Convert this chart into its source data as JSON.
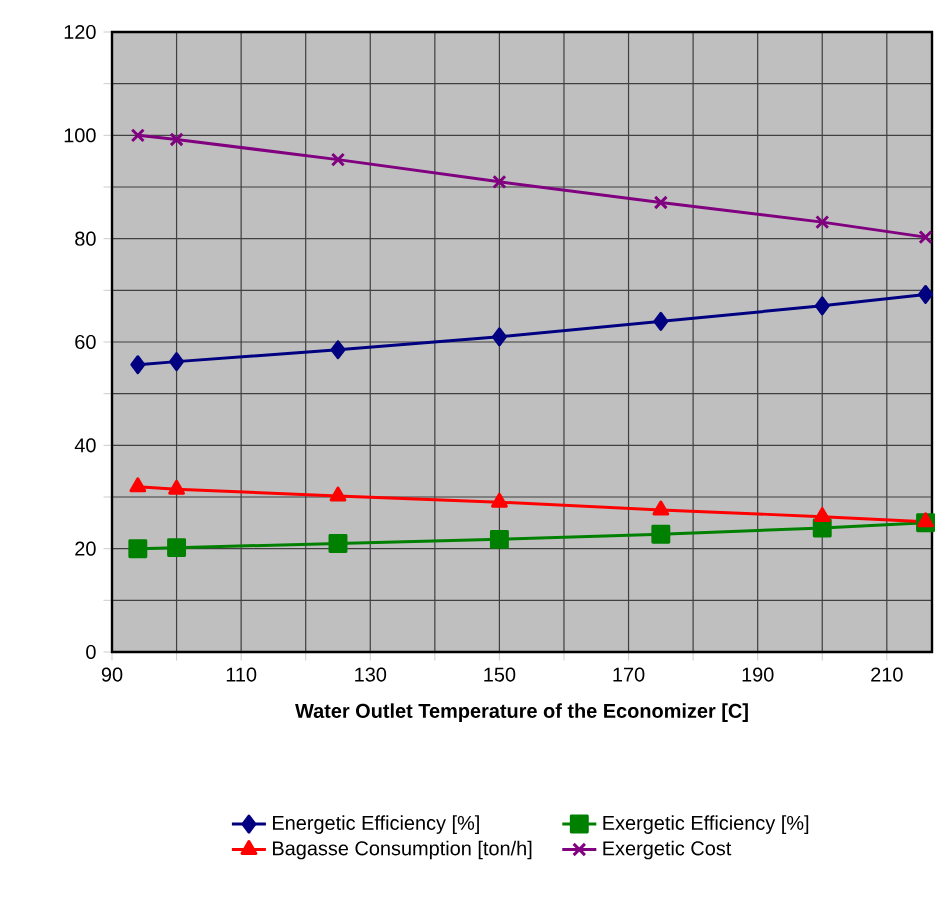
{
  "chart_data": {
    "type": "line",
    "xlabel": "Water Outlet Temperature of the Economizer [C]",
    "x": [
      94,
      100,
      125,
      150,
      175,
      200,
      216
    ],
    "series": [
      {
        "name": "Energetic Efficiency [%]",
        "color": "#000080",
        "marker": "diamond",
        "values": [
          55.6,
          56.2,
          58.5,
          61,
          64,
          67,
          69.2
        ]
      },
      {
        "name": "Exergetic Efficiency [%]",
        "color": "#008000",
        "marker": "square",
        "values": [
          20,
          20.2,
          21,
          21.8,
          22.8,
          24,
          25
        ]
      },
      {
        "name": "Bagasse Consumption [ton/h]",
        "color": "#ff0000",
        "marker": "triangle",
        "values": [
          32,
          31.5,
          30.2,
          29,
          27.5,
          26.2,
          25.2
        ]
      },
      {
        "name": "Exergetic Cost",
        "color": "#800080",
        "marker": "cross",
        "values": [
          100,
          99.2,
          95.3,
          91,
          87,
          83.2,
          80.3
        ]
      }
    ],
    "xlim": [
      90,
      217
    ],
    "ylim": [
      0,
      120
    ],
    "xticks": [
      90,
      {
        "value": 100,
        "label": null
      },
      110,
      {
        "value": 120,
        "label": null
      },
      130,
      {
        "value": 140,
        "label": null
      },
      150,
      {
        "value": 160,
        "label": null
      },
      170,
      {
        "value": 180,
        "label": null
      },
      190,
      {
        "value": 200,
        "label": null
      },
      210
    ],
    "yticks": [
      0,
      {
        "value": 10,
        "label": null
      },
      20,
      {
        "value": 30,
        "label": null
      },
      40,
      {
        "value": 50,
        "label": null
      },
      60,
      {
        "value": 70,
        "label": null
      },
      80,
      {
        "value": 90,
        "label": null
      },
      100,
      {
        "value": 110,
        "label": null
      },
      120
    ],
    "grid": true,
    "legend": "bottom",
    "line_style": "solid"
  }
}
